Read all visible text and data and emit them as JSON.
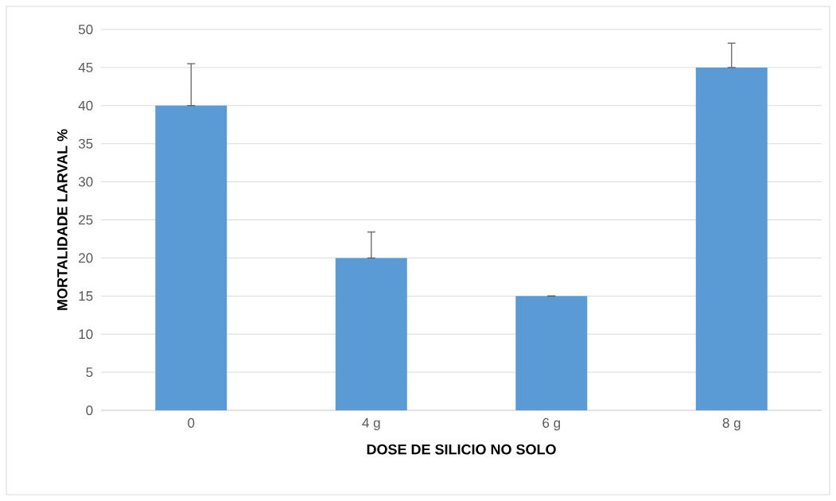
{
  "chart_data": {
    "type": "bar",
    "xlabel": "DOSE DE SILICIO NO SOLO",
    "ylabel": "MORTALIDADE LARVAL %",
    "categories": [
      "0",
      "4 g",
      "6 g",
      "8 g"
    ],
    "values": [
      40,
      20,
      15,
      45
    ],
    "errors": [
      [
        40,
        45.5
      ],
      [
        20,
        23.4
      ],
      [
        15,
        15
      ],
      [
        45,
        48.2
      ]
    ],
    "color": "#5b9bd5",
    "ylim": [
      0,
      50
    ],
    "yticks": [
      0,
      5,
      10,
      15,
      20,
      25,
      30,
      35,
      40,
      45,
      50
    ],
    "grid": "y"
  }
}
